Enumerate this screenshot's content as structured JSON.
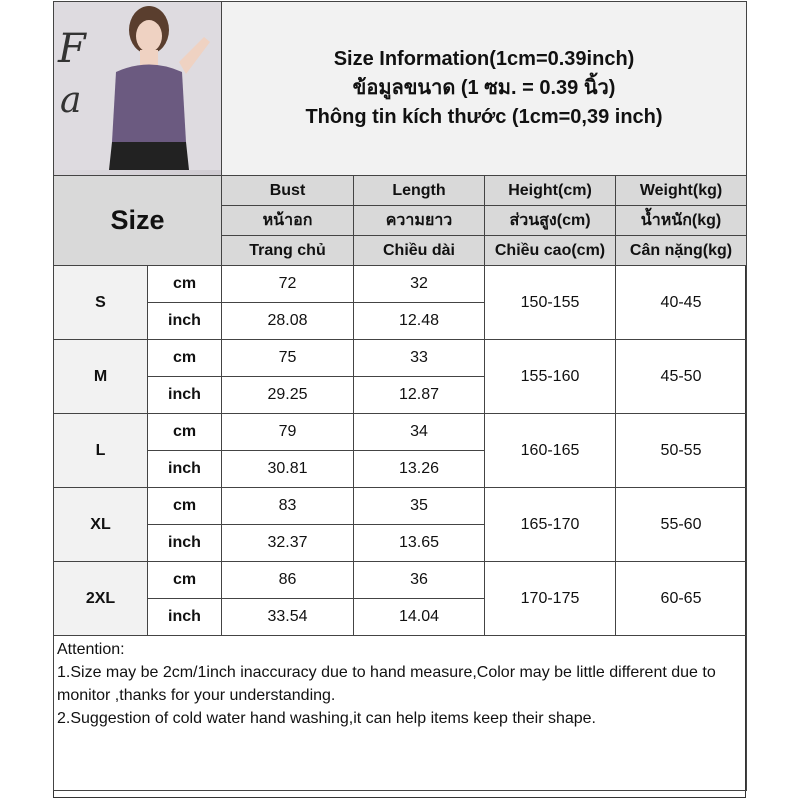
{
  "header": {
    "title_en": "Size Information(1cm=0.39inch)",
    "title_th": "ข้อมูลขนาด (1 ซม. = 0.39 นิ้ว)",
    "title_vi": "Thông tin kích thước (1cm=0,39 inch)",
    "size_label": "Size"
  },
  "columns": [
    {
      "en": "Bust",
      "th": "หน้าอก",
      "vi": "Trang chủ"
    },
    {
      "en": "Length",
      "th": "ความยาว",
      "vi": "Chiều dài"
    },
    {
      "en": "Height(cm)",
      "th": "ส่วนสูง(cm)",
      "vi": "Chiều cao(cm)"
    },
    {
      "en": "Weight(kg)",
      "th": "น้ำหนัก(kg)",
      "vi": "Cân nặng(kg)"
    }
  ],
  "units": {
    "cm": "cm",
    "inch": "inch"
  },
  "rows": [
    {
      "size": "S",
      "bust_cm": "72",
      "length_cm": "32",
      "bust_in": "28.08",
      "length_in": "12.48",
      "height": "150-155",
      "weight": "40-45"
    },
    {
      "size": "M",
      "bust_cm": "75",
      "length_cm": "33",
      "bust_in": "29.25",
      "length_in": "12.87",
      "height": "155-160",
      "weight": "45-50"
    },
    {
      "size": "L",
      "bust_cm": "79",
      "length_cm": "34",
      "bust_in": "30.81",
      "length_in": "13.26",
      "height": "160-165",
      "weight": "50-55"
    },
    {
      "size": "XL",
      "bust_cm": "83",
      "length_cm": "35",
      "bust_in": "32.37",
      "length_in": "13.65",
      "height": "165-170",
      "weight": "55-60"
    },
    {
      "size": "2XL",
      "bust_cm": "86",
      "length_cm": "36",
      "bust_in": "33.54",
      "length_in": "14.04",
      "height": "170-175",
      "weight": "60-65"
    }
  ],
  "notes": {
    "heading": "Attention:",
    "line1": "1.Size may be 2cm/1inch inaccuracy due to hand measure,Color may be little different due to monitor ,thanks for your understanding.",
    "line2": "2.Suggestion of cold water hand washing,it can help items keep their shape."
  },
  "colors": {
    "header_bg": "#d9d9d9",
    "title_bg": "#f2f2f2",
    "garment": "#6b5a80"
  }
}
